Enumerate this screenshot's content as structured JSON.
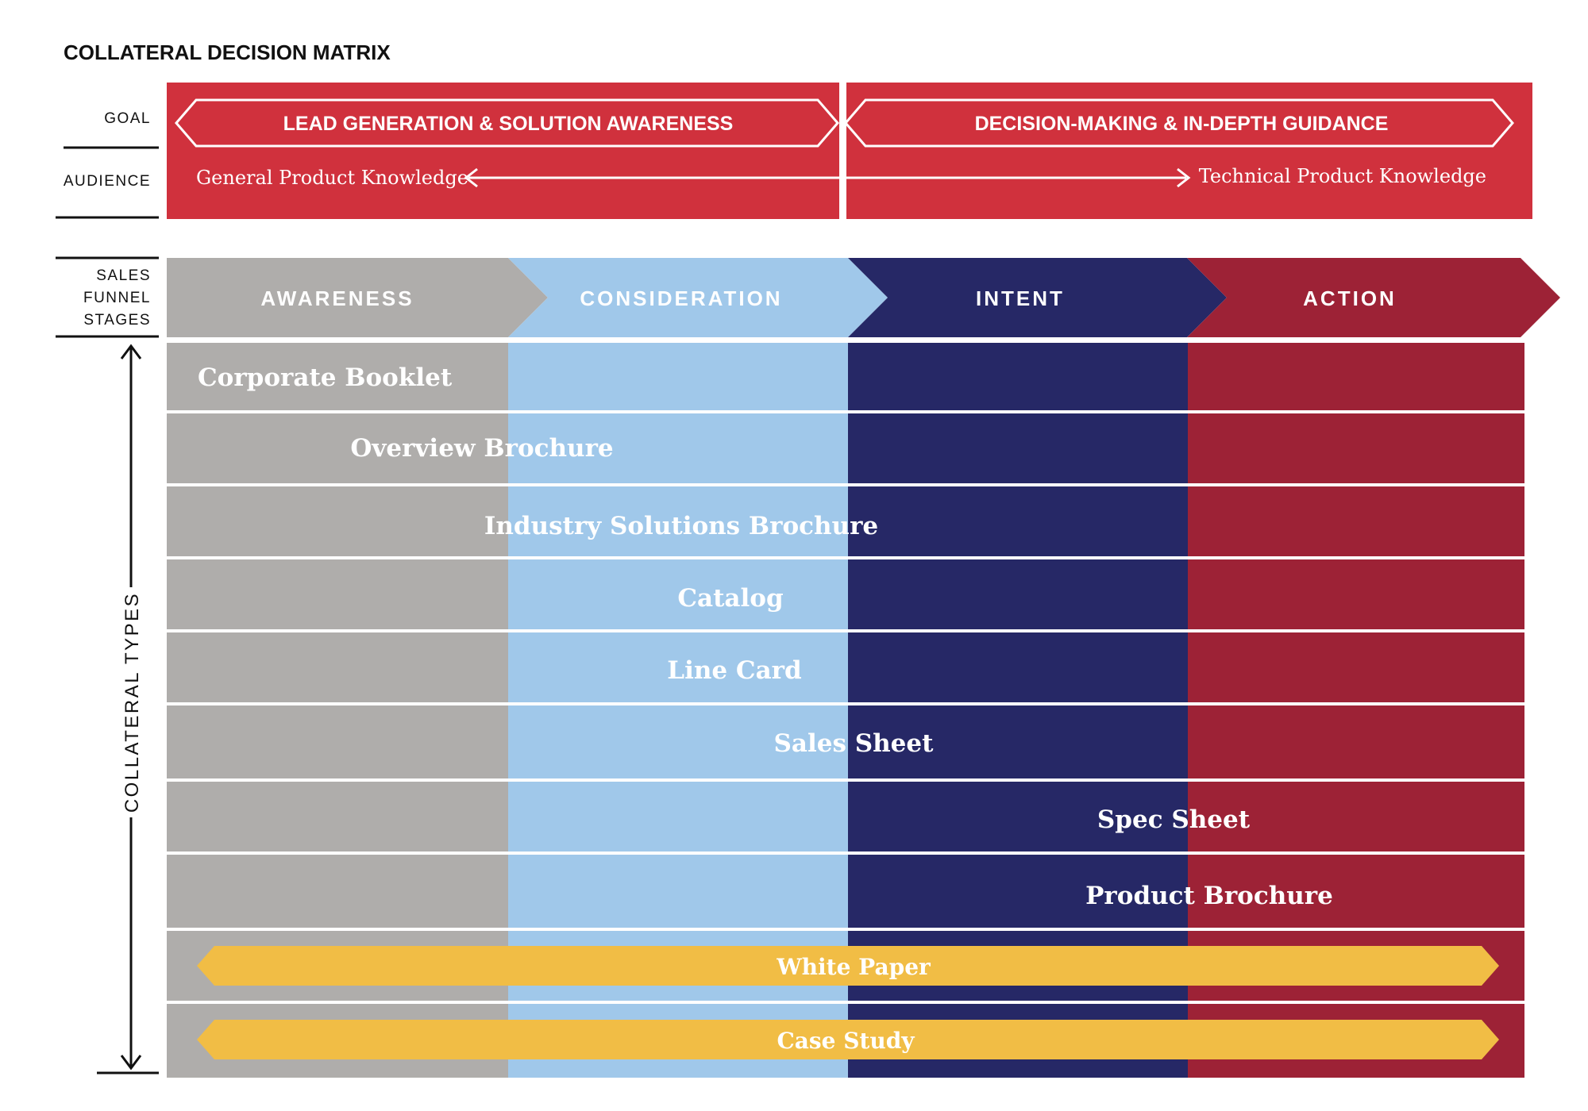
{
  "title": "COLLATERAL DECISION MATRIX",
  "row_labels": {
    "goal": "GOAL",
    "audience": "AUDIENCE",
    "stages": [
      "SALES",
      "FUNNEL",
      "STAGES"
    ],
    "collateral_types": "COLLATERAL TYPES"
  },
  "goals": {
    "left": "LEAD GENERATION & SOLUTION AWARENESS",
    "right": "DECISION-MAKING & IN-DEPTH GUIDANCE"
  },
  "audience": {
    "left": "General Product Knowledge",
    "right": "Technical Product Knowledge"
  },
  "stages": [
    "AWARENESS",
    "CONSIDERATION",
    "INTENT",
    "ACTION"
  ],
  "collateral": [
    "Corporate Booklet",
    "Overview Brochure",
    "Industry Solutions Brochure",
    "Catalog",
    "Line Card",
    "Sales Sheet",
    "Spec Sheet",
    "Product Brochure"
  ],
  "spanning_collateral": [
    "White Paper",
    "Case Study"
  ],
  "colors": {
    "goal_red": "#d0313d",
    "awareness": "#afadab",
    "consideration": "#a0c8ea",
    "intent": "#262866",
    "action": "#9d2236",
    "bar_yellow": "#f1bd45"
  }
}
